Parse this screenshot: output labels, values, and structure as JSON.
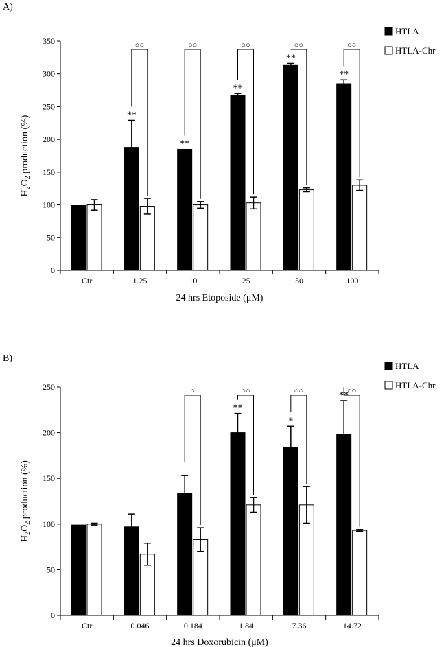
{
  "panels": [
    {
      "label": "A)",
      "legend": [
        {
          "name": "HTLA",
          "fill": "#000000"
        },
        {
          "name": "HTLA-Chr",
          "fill": "#ffffff"
        }
      ]
    },
    {
      "label": "B)",
      "legend": [
        {
          "name": "HTLA",
          "fill": "#000000"
        },
        {
          "name": "HTLA-Chr",
          "fill": "#ffffff"
        }
      ]
    }
  ],
  "chart_data": [
    {
      "type": "bar",
      "title": "",
      "xlabel": "24 hrs Etoposide (μM)",
      "ylabel": "H2O2 production (%)",
      "ylim": [
        0,
        350
      ],
      "yticks": [
        0,
        50,
        100,
        150,
        200,
        250,
        300,
        350
      ],
      "categories": [
        "Ctr",
        "1.25",
        "10",
        "25",
        "50",
        "100"
      ],
      "series": [
        {
          "name": "HTLA",
          "color": "#000000",
          "values": [
            99,
            188,
            185,
            267,
            313,
            285
          ],
          "errors": [
            0,
            41,
            0,
            3,
            3,
            6
          ],
          "annotations": [
            "",
            "**",
            "**",
            "**",
            "**",
            "**"
          ]
        },
        {
          "name": "HTLA-Chr",
          "color": "#ffffff",
          "values": [
            100,
            98,
            100,
            103,
            123,
            130
          ],
          "errors": [
            8,
            12,
            5,
            9,
            3,
            8
          ],
          "annotations": [
            "",
            "",
            "",
            "",
            "",
            ""
          ]
        }
      ],
      "bracket_annotations": [
        "",
        "○○",
        "○○",
        "○○",
        "○○",
        "○○"
      ]
    },
    {
      "type": "bar",
      "title": "",
      "xlabel": "24 hrs Doxorubicin (μM)",
      "ylabel": "H2O2 production (%)",
      "ylim": [
        0,
        250
      ],
      "yticks": [
        0,
        50,
        100,
        150,
        200,
        250
      ],
      "categories": [
        "Ctr",
        "0.046",
        "0.184",
        "1.84",
        "7.36",
        "14.72"
      ],
      "series": [
        {
          "name": "HTLA",
          "color": "#000000",
          "values": [
            99,
            97,
            134,
            200,
            184,
            198
          ],
          "errors": [
            0,
            14,
            19,
            21,
            23,
            37
          ],
          "annotations": [
            "",
            "",
            "",
            "**",
            "*",
            "**"
          ]
        },
        {
          "name": "HTLA-Chr",
          "color": "#ffffff",
          "values": [
            100,
            67,
            83,
            121,
            121,
            93
          ],
          "errors": [
            1,
            12,
            13,
            8,
            20,
            1
          ],
          "annotations": [
            "",
            "",
            "",
            "",
            "",
            ""
          ]
        }
      ],
      "bracket_annotations": [
        "",
        "",
        "○",
        "○○",
        "○○",
        "○○"
      ]
    }
  ]
}
